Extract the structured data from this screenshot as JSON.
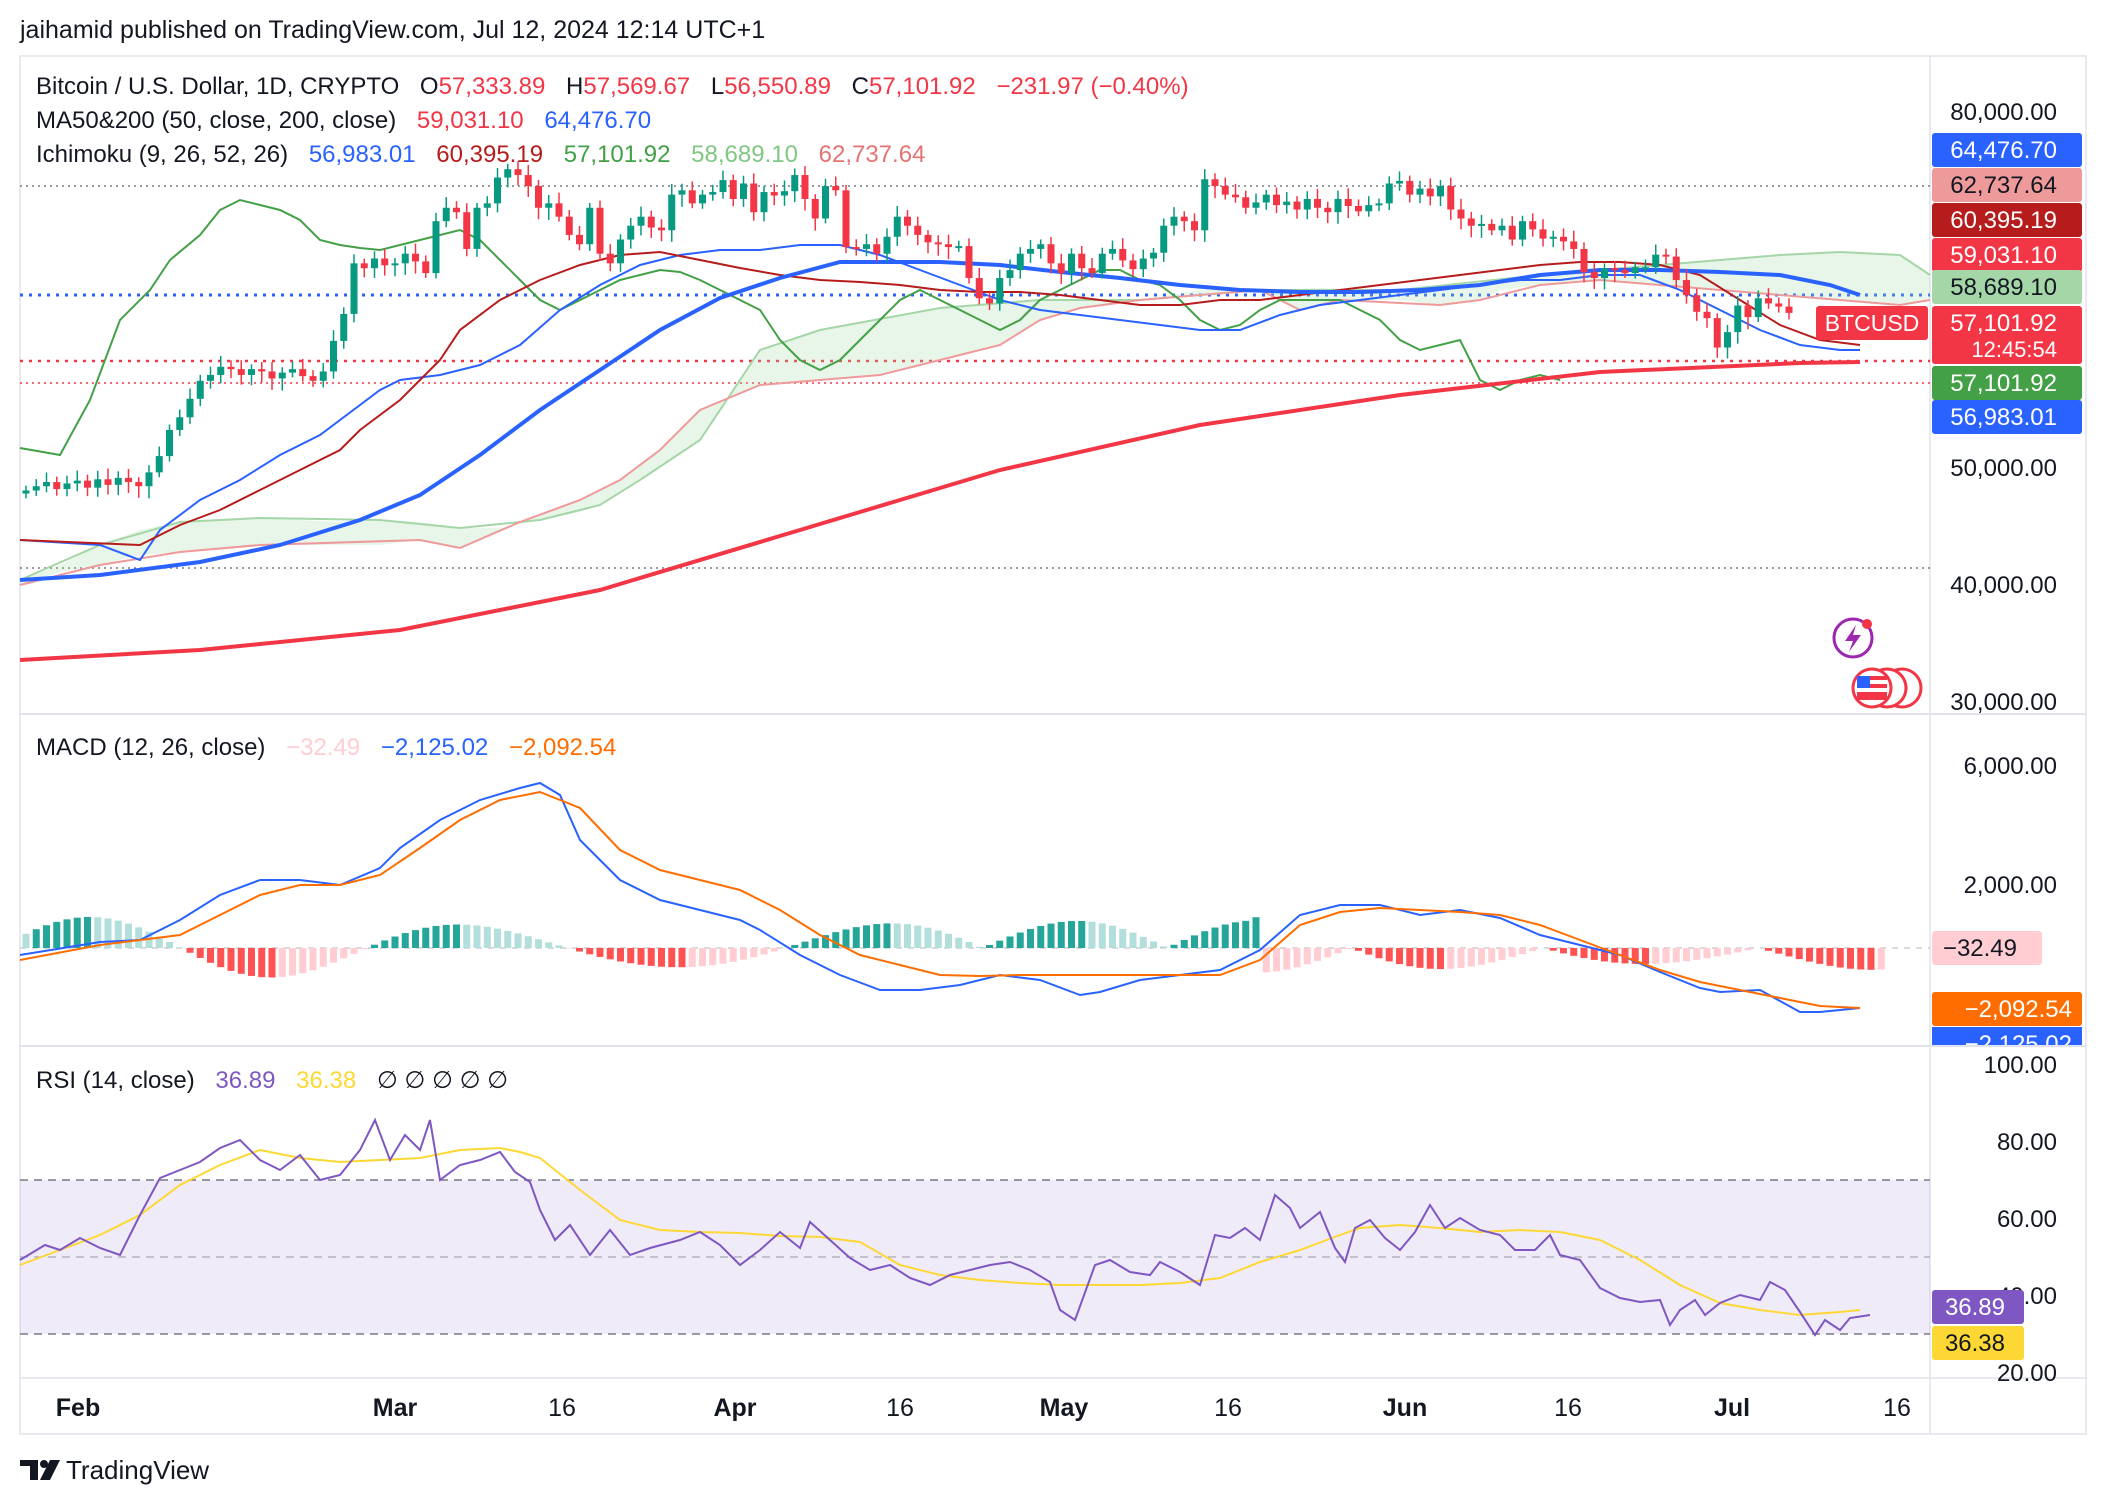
{
  "header": {
    "publisher": "jaihamid published on TradingView.com, Jul 12, 2024 12:14 UTC+1"
  },
  "legend": {
    "symbol": "Bitcoin / U.S. Dollar, 1D, CRYPTO",
    "o_label": "O",
    "o_value": "57,333.89",
    "h_label": "H",
    "h_value": "57,569.67",
    "l_label": "L",
    "l_value": "56,550.89",
    "c_label": "C",
    "c_value": "57,101.92",
    "change": "−231.97 (−0.40%)",
    "ma_label": "MA50&200 (50, close, 200, close)",
    "ma50_value": "59,031.10",
    "ma200_value": "64,476.70",
    "ichimoku_label": "Ichimoku (9, 26, 52, 26)",
    "ichi_conv": "56,983.01",
    "ichi_base": "60,395.19",
    "ichi_lag": "57,101.92",
    "ichi_spanA": "58,689.10",
    "ichi_spanB": "62,737.64",
    "macd_label": "MACD (12, 26, close)",
    "macd_hist": "−32.49",
    "macd_line": "−2,125.02",
    "macd_signal": "−2,092.54",
    "rsi_label": "RSI (14, close)",
    "rsi_value": "36.89",
    "rsi_ma": "36.38",
    "rsi_null": "∅ ∅ ∅ ∅ ∅"
  },
  "price_badges": {
    "ma200": "64,476.70",
    "spanB": "62,737.64",
    "base": "60,395.19",
    "ma50": "59,031.10",
    "spanA": "58,689.10",
    "symbol_tag": "BTCUSD",
    "price": "57,101.92",
    "countdown": "12:45:54",
    "lagging": "57,101.92",
    "conversion": "56,983.01"
  },
  "macd_badges": {
    "hist": "−32.49",
    "signal": "−2,092.54",
    "macd": "−2,125.02"
  },
  "rsi_badges": {
    "rsi": "36.89",
    "ma": "36.38"
  },
  "footer": {
    "brand": "TradingView"
  },
  "colors": {
    "up": "#089981",
    "down": "#f23645",
    "ma50": "#f23645",
    "ma200": "#2962ff",
    "conv": "#2962ff",
    "base": "#b71c1c",
    "lag": "#43a047",
    "spanA": "#a5d6a7",
    "spanB": "#ef9a9a",
    "macd": "#2962ff",
    "signal": "#ff6d00",
    "rsi": "#7e57c2",
    "rsi_ma": "#fdd835"
  },
  "chart_data": [
    {
      "type": "candlestick",
      "title": "Bitcoin / U.S. Dollar, 1D, CRYPTO",
      "x_ticks": [
        "Feb",
        "Mar",
        "16",
        "Apr",
        "16",
        "May",
        "16",
        "Jun",
        "16",
        "Jul",
        "16"
      ],
      "y_ticks": [
        "80,000.00",
        "50,000.00",
        "40,000.00",
        "30,000.00"
      ],
      "ylim": [
        30000,
        80000
      ],
      "y_scale": "log",
      "closes": [
        42500,
        42800,
        43100,
        42600,
        43000,
        43200,
        42700,
        43300,
        42900,
        43400,
        43100,
        42800,
        43800,
        45000,
        47000,
        48000,
        49500,
        51000,
        51500,
        52200,
        52000,
        51500,
        52000,
        51800,
        51200,
        51700,
        52000,
        51400,
        51000,
        51800,
        54500,
        57000,
        62000,
        61500,
        62500,
        61800,
        62000,
        63000,
        62200,
        61000,
        66500,
        68000,
        67500,
        63500,
        68000,
        68500,
        71500,
        72500,
        71800,
        70500,
        68000,
        68500,
        67000,
        65000,
        64000,
        68000,
        63000,
        62000,
        64500,
        66000,
        67000,
        65800,
        65500,
        69500,
        70000,
        68500,
        69500,
        69800,
        71200,
        69000,
        70800,
        67500,
        69800,
        69400,
        69900,
        71800,
        69000,
        66800,
        70500,
        70000,
        63700,
        63500,
        64000,
        63000,
        64800,
        67000,
        66000,
        65000,
        64200,
        64000,
        63700,
        63800,
        60500,
        58500,
        58000,
        60500,
        61300,
        63000,
        63500,
        64000,
        62000,
        61000,
        63000,
        61500,
        61000,
        63000,
        63500,
        62300,
        61400,
        62500,
        63100,
        66000,
        67000,
        66500,
        65500,
        71300,
        70500,
        69500,
        69200,
        68000,
        68600,
        69500,
        68300,
        68700,
        67800,
        69000,
        68000,
        67500,
        69000,
        68200,
        67600,
        68300,
        68500,
        70800,
        71100,
        69500,
        70200,
        69300,
        70500,
        67800,
        66800,
        66000,
        66200,
        65500,
        66000,
        64500,
        66500,
        65600,
        64600,
        64800,
        64300,
        63500,
        61100,
        60500,
        61500,
        61300,
        61000,
        61600,
        61600,
        62900,
        62700,
        60300,
        58800,
        57200,
        56600,
        53900,
        55300,
        57800,
        56700,
        58500,
        58000,
        57700,
        57100
      ],
      "macd": {
        "line": "−2,125.02",
        "signal": "−2,092.54",
        "histogram": "−32.49",
        "y_ticks": [
          "6,000.00",
          "2,000.00"
        ]
      },
      "rsi": {
        "value": 36.89,
        "ma": 36.38,
        "upper_band": 70,
        "lower_band": 30,
        "middle": 50,
        "y_ticks": [
          "100.00",
          "80.00",
          "60.00",
          "40.00",
          "20.00"
        ]
      }
    }
  ]
}
